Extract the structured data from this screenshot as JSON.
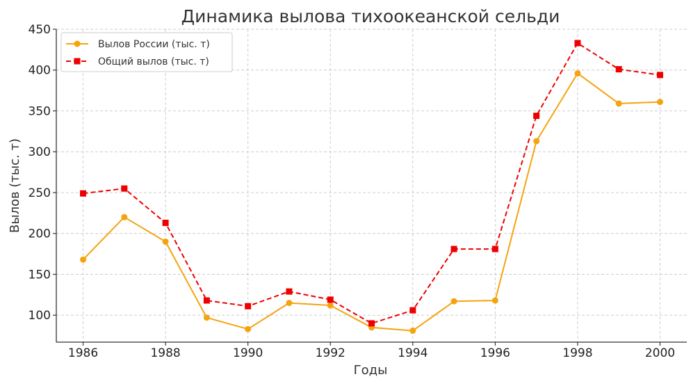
{
  "chart_data": {
    "type": "line",
    "title": "Динамика вылова тихоокеанской сельди",
    "xlabel": "Годы",
    "ylabel": "Вылов (тыс. т)",
    "x": [
      1986,
      1987,
      1988,
      1989,
      1990,
      1991,
      1992,
      1993,
      1994,
      1995,
      1996,
      1997,
      1998,
      1999,
      2000
    ],
    "x_ticks": [
      1986,
      1988,
      1990,
      1992,
      1994,
      1996,
      1998,
      2000
    ],
    "x_tick_labels": [
      "1986",
      "1988",
      "1990",
      "1992",
      "1994",
      "1996",
      "1998",
      "2000"
    ],
    "y_ticks": [
      100,
      150,
      200,
      250,
      300,
      350,
      400,
      450
    ],
    "y_tick_labels": [
      "100",
      "150",
      "200",
      "250",
      "300",
      "350",
      "400",
      "450"
    ],
    "xlim": [
      1985.35,
      2000.65
    ],
    "ylim": [
      67,
      450
    ],
    "grid": true,
    "legend_position": "top-left",
    "series": [
      {
        "name": "Вылов России (тыс. т)",
        "color": "#f5a30f",
        "line_style": "solid",
        "marker": "circle",
        "values": [
          168,
          220,
          190,
          97,
          83,
          115,
          112,
          85,
          81,
          117,
          118,
          313,
          396,
          359,
          361
        ]
      },
      {
        "name": "Общий вылов (тыс. т)",
        "color": "#ee0000",
        "line_style": "dashed",
        "marker": "square",
        "values": [
          249,
          255,
          213,
          118,
          111,
          129,
          119,
          90,
          106,
          181,
          181,
          344,
          433,
          401,
          394
        ]
      }
    ]
  }
}
